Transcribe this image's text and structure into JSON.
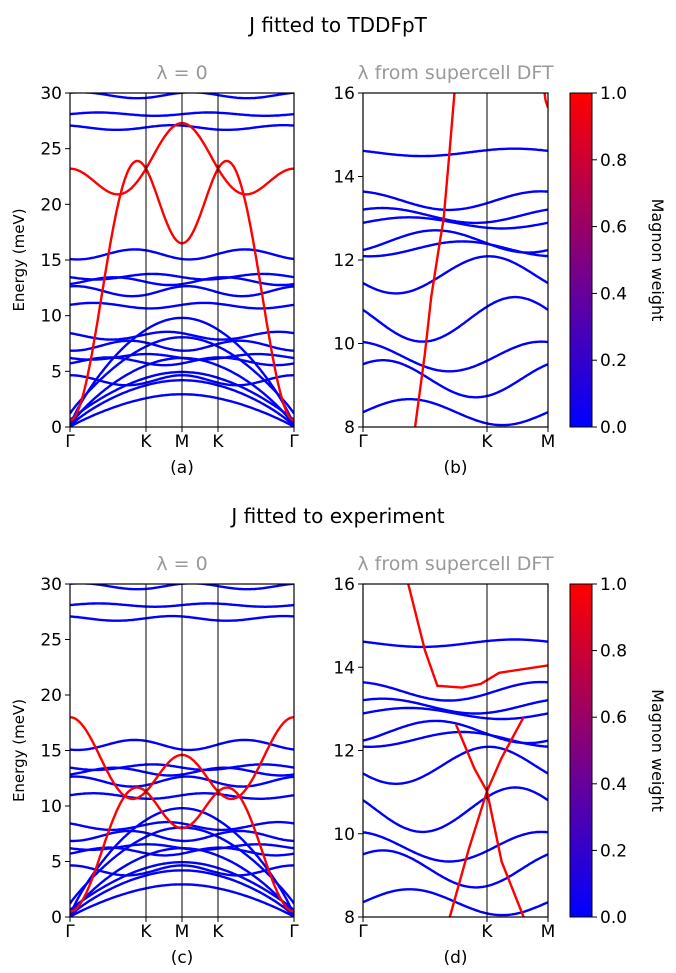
{
  "figure": {
    "row_titles": [
      "J fitted to TDDFpT",
      "J fitted to experiment"
    ],
    "colorbar_label": "Magnon weight",
    "colorbar_ticks": [
      "0.0",
      "0.2",
      "0.4",
      "0.6",
      "0.8",
      "1.0"
    ],
    "colors": {
      "magnon": "#ff0000",
      "phonon": "#0000ff",
      "subtitle": "#999999",
      "axis": "#000000"
    }
  },
  "chart_data": [
    {
      "id": "a",
      "type": "line",
      "panel_label": "(a)",
      "subtitle": "λ = 0",
      "ylabel": "Energy (meV)",
      "ylim": [
        0,
        30
      ],
      "yticks": [
        "0",
        "5",
        "10",
        "15",
        "20",
        "25",
        "30"
      ],
      "xticks": [
        "Γ",
        "K",
        "M",
        "K",
        "Γ"
      ],
      "xtick_pos": [
        0,
        1,
        1.5,
        2,
        3
      ],
      "magnon": {
        "name": "magnon branches",
        "energy_K": 23.2,
        "energy_M_upper": 27.3,
        "energy_M_lower": 16.5,
        "energy_Gamma_upper": 23.2,
        "energy_Gamma_lower": 0.6
      },
      "phonon_flat_levels": [
        4.2,
        5.9,
        6.3,
        7.3,
        8.2,
        10.9,
        12.2,
        13.1,
        13.5,
        15.5,
        26.9,
        28.1,
        29.8
      ],
      "phonon_acoustic_maxima": [
        4.2,
        6.2,
        9.8
      ]
    },
    {
      "id": "b",
      "type": "line",
      "panel_label": "(b)",
      "subtitle": "λ from supercell DFT",
      "ylim": [
        8,
        17
      ],
      "yticks": [
        "8",
        "10",
        "12",
        "14",
        "16"
      ],
      "xticks": [
        "Γ",
        "K",
        "M"
      ],
      "xtick_pos": [
        0,
        1,
        1.5
      ],
      "magnon_crossings": [
        {
          "x": 0.4,
          "y": 8.0
        },
        {
          "x": 0.62,
          "y": 13.0
        },
        {
          "x": 0.75,
          "y": 17.0
        }
      ],
      "phonon_levels": [
        8.4,
        9.3,
        9.9,
        10.9,
        12.1,
        12.8,
        13.0,
        13.5,
        13.7,
        14.1,
        15.4
      ]
    },
    {
      "id": "c",
      "type": "line",
      "panel_label": "(c)",
      "subtitle": "λ = 0",
      "ylabel": "Energy (meV)",
      "ylim": [
        0,
        30
      ],
      "yticks": [
        "0",
        "5",
        "10",
        "15",
        "20",
        "25",
        "30"
      ],
      "xticks": [
        "Γ",
        "K",
        "M",
        "K",
        "Γ"
      ],
      "xtick_pos": [
        0,
        1,
        1.5,
        2,
        3
      ],
      "magnon": {
        "energy_K": 11.3,
        "energy_M_upper": 14.6,
        "energy_M_lower": 8.0,
        "energy_Gamma_upper": 18.0,
        "energy_Gamma_lower": 0.5
      },
      "phonon_flat_levels": [
        4.2,
        5.9,
        6.3,
        7.3,
        8.2,
        10.9,
        12.2,
        13.1,
        13.5,
        15.5,
        26.9,
        28.1,
        29.8
      ],
      "phonon_acoustic_maxima": [
        4.2,
        6.2,
        9.8
      ]
    },
    {
      "id": "d",
      "type": "line",
      "panel_label": "(d)",
      "subtitle": "λ from supercell DFT",
      "ylim": [
        8,
        17
      ],
      "yticks": [
        "8",
        "10",
        "12",
        "14",
        "16"
      ],
      "xticks": [
        "Γ",
        "K",
        "M"
      ],
      "xtick_pos": [
        0,
        1,
        1.5
      ],
      "magnon_crossings": [
        {
          "x": 0.55,
          "y": 14.2
        },
        {
          "x": 1.0,
          "y": 11.4
        },
        {
          "x": 1.25,
          "y": 8.4
        }
      ],
      "phonon_levels": [
        8.4,
        9.3,
        9.9,
        10.9,
        12.1,
        12.8,
        13.0,
        13.5,
        13.7,
        14.1,
        15.4
      ]
    }
  ]
}
